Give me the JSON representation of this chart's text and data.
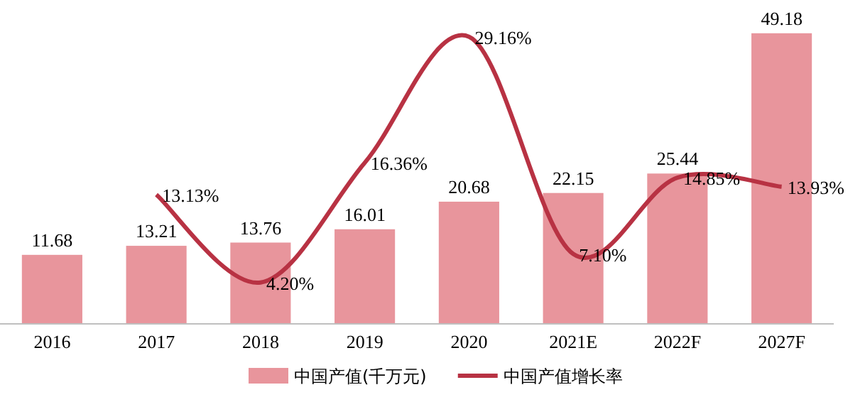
{
  "chart_data": {
    "type": "bar",
    "categories": [
      "2016",
      "2017",
      "2018",
      "2019",
      "2020",
      "2021E",
      "2022F",
      "2027F"
    ],
    "series": [
      {
        "name": "中国产值(千万元)",
        "color": "#e8959c",
        "values": [
          11.68,
          13.21,
          13.76,
          16.01,
          20.68,
          22.15,
          25.44,
          49.18
        ]
      },
      {
        "name": "中国产值增长率",
        "type": "line",
        "axis": "y2",
        "color": "#b83243",
        "values": [
          null,
          13.13,
          4.2,
          16.36,
          29.16,
          7.1,
          14.85,
          13.93
        ],
        "value_labels": [
          null,
          "13.13%",
          "4.20%",
          "16.36%",
          "29.16%",
          "7.10%",
          "14.85%",
          "13.93%"
        ]
      }
    ],
    "ylim": [
      0,
      50
    ],
    "y2lim": [
      0,
      30
    ],
    "data_labels": true,
    "legend": "bottom",
    "tick_labels": "x"
  }
}
